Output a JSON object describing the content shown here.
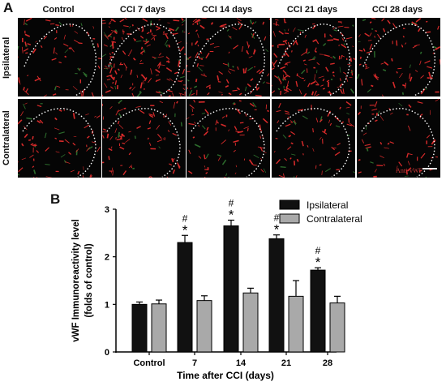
{
  "panel_a": {
    "letter": "A",
    "columns": [
      "Control",
      "CCI 7 days",
      "CCI 14 days",
      "CCI 21 days",
      "CCI 28 days"
    ],
    "rows": [
      "Ipsilateral",
      "Contralateral"
    ],
    "stain_label": "Anti-vWF",
    "colors": {
      "background": "#050505",
      "stain": "#d62a2a",
      "outline": "#ffffff"
    }
  },
  "panel_b": {
    "letter": "B"
  },
  "chart_data": {
    "type": "bar",
    "categories": [
      "Control",
      "7",
      "14",
      "21",
      "28"
    ],
    "series": [
      {
        "name": "Ipsilateral",
        "color": "#111111",
        "values": [
          1.0,
          2.3,
          2.65,
          2.38,
          1.72
        ],
        "errors": [
          0.05,
          0.15,
          0.12,
          0.08,
          0.05
        ]
      },
      {
        "name": "Contralateral",
        "color": "#a9a9a9",
        "values": [
          1.01,
          1.08,
          1.24,
          1.17,
          1.03
        ],
        "errors": [
          0.08,
          0.1,
          0.1,
          0.33,
          0.14
        ]
      }
    ],
    "significance": [
      "",
      "#*",
      "#*",
      "#*",
      "#*"
    ],
    "ylabel": "vWF Immunoreactivity level (folds of control)",
    "xlabel": "Time after CCI (days)",
    "ylim": [
      0,
      3
    ],
    "yticks": [
      "0",
      "1",
      "2",
      "3"
    ],
    "legend_position": "top-right",
    "grid": false
  }
}
